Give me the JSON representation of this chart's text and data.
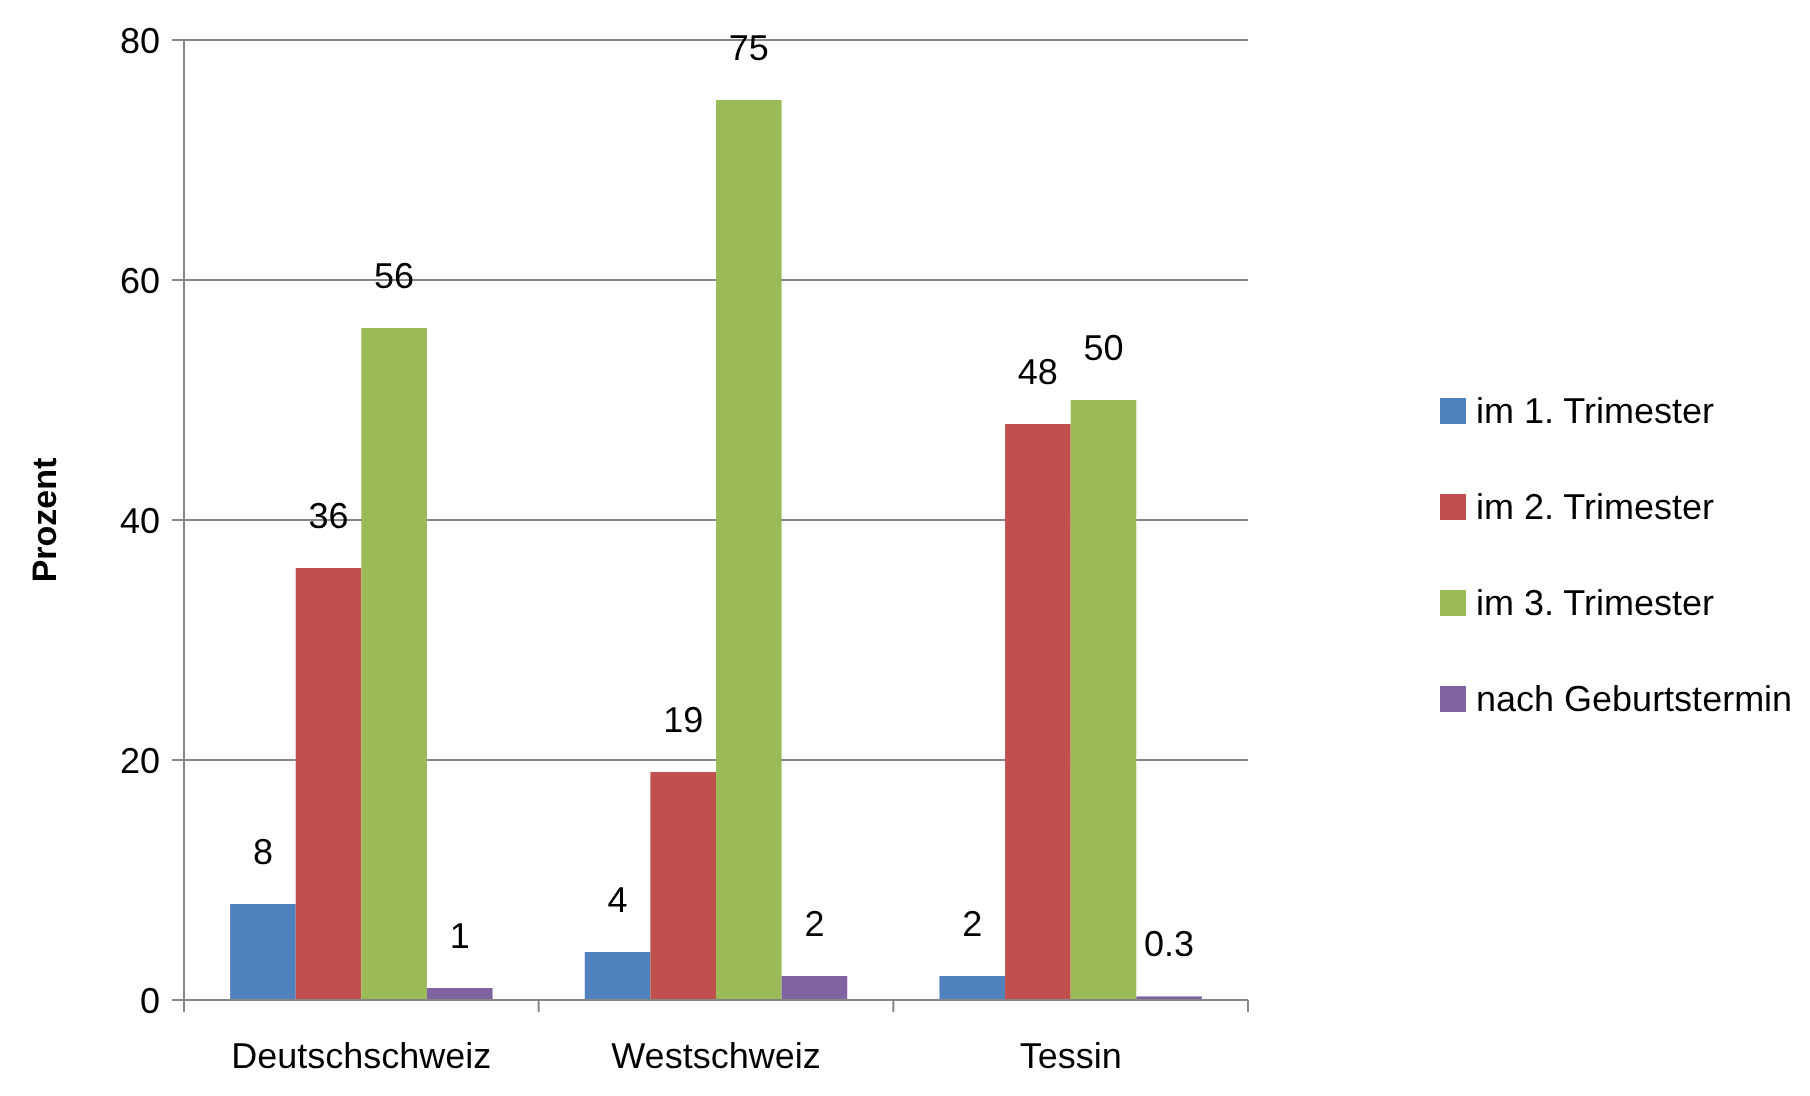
{
  "chart_data": {
    "type": "bar",
    "ylabel": "Prozent",
    "categories": [
      "Deutschschweiz",
      "Westschweiz",
      "Tessin"
    ],
    "series": [
      {
        "name": "im 1. Trimester",
        "color": "#4f81bd",
        "values": [
          8,
          4,
          2
        ]
      },
      {
        "name": "im 2. Trimester",
        "color": "#c0504d",
        "values": [
          36,
          19,
          48
        ]
      },
      {
        "name": "im 3. Trimester",
        "color": "#9bbb59",
        "values": [
          56,
          75,
          50
        ]
      },
      {
        "name": "nach Geburtstermin",
        "color": "#8064a2",
        "values": [
          1,
          2,
          0.3
        ]
      }
    ],
    "ylim": [
      0,
      80
    ],
    "yticks": [
      0,
      20,
      40,
      60,
      80
    ],
    "grid": "y",
    "legend": "right",
    "data_labels": true
  }
}
